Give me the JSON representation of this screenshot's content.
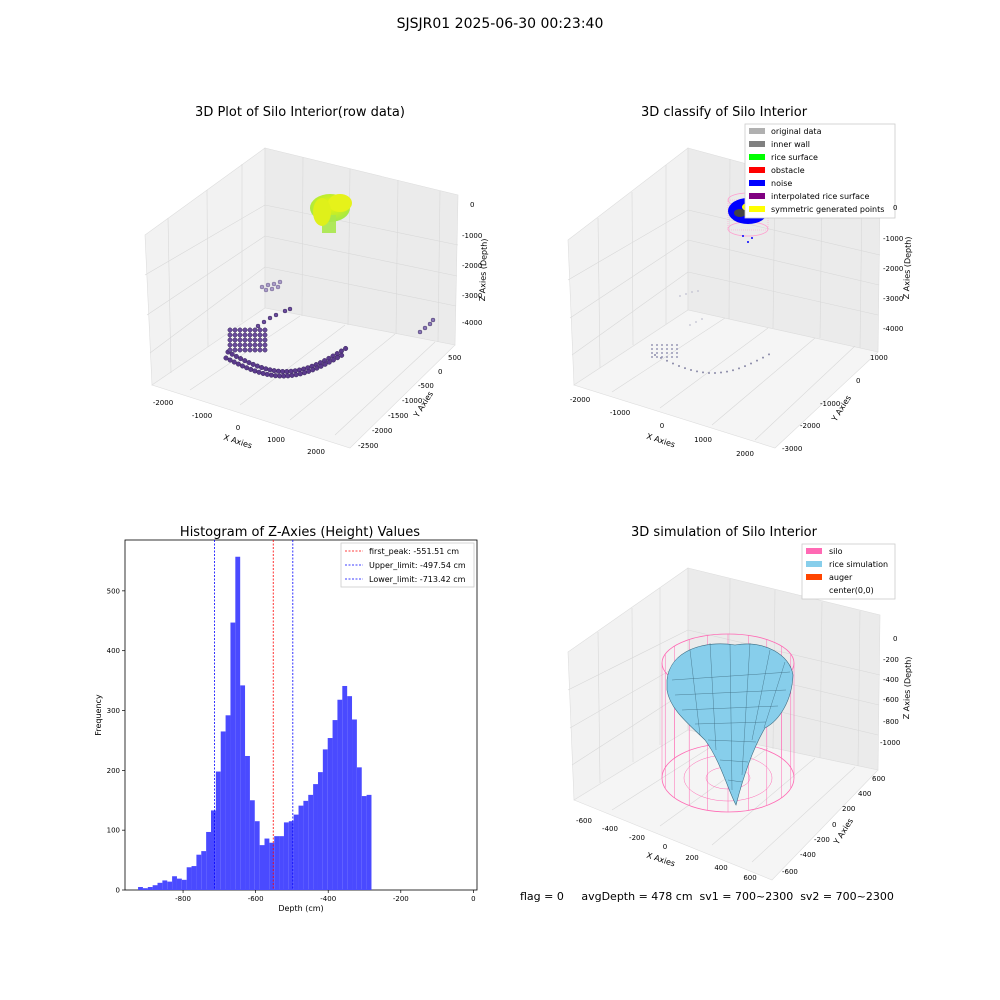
{
  "suptitle": "SJSJR01 2025-06-30 00:23:40",
  "panels": {
    "raw": {
      "title": "3D Plot of Silo Interior(row data)",
      "xlabel": "X Axies",
      "ylabel": "Y Axies",
      "zlabel": "Z Axies (Depth)",
      "xticks": [
        "-2000",
        "-1000",
        "0",
        "1000",
        "2000"
      ],
      "yticks": [
        "500",
        "0",
        "-500",
        "-1000",
        "-1500",
        "-2000",
        "-2500"
      ],
      "zticks": [
        "0",
        "-1000",
        "-2000",
        "-3000",
        "-4000"
      ]
    },
    "classify": {
      "title": "3D classify of Silo Interior",
      "xlabel": "X Axies",
      "ylabel": "Y Axies",
      "zlabel": "Z Axies (Depth)",
      "xticks": [
        "-2000",
        "-1000",
        "0",
        "1000",
        "2000"
      ],
      "yticks": [
        "1000",
        "0",
        "-1000",
        "-2000",
        "-3000"
      ],
      "zticks": [
        "0",
        "-1000",
        "-2000",
        "-3000",
        "-4000"
      ],
      "legend": [
        {
          "label": "original data",
          "color": "#b0b0b0"
        },
        {
          "label": "inner wall",
          "color": "#808080"
        },
        {
          "label": "rice surface",
          "color": "#00ff00"
        },
        {
          "label": "obstacle",
          "color": "#ff0000"
        },
        {
          "label": "noise",
          "color": "#0000ff"
        },
        {
          "label": "interpolated rice surface",
          "color": "#800080"
        },
        {
          "label": "symmetric generated points",
          "color": "#ffff00"
        }
      ]
    },
    "simulation": {
      "title": "3D simulation of Silo Interior",
      "xlabel": "X Axies",
      "ylabel": "Y Axies",
      "zlabel": "Z Axies (Depth)",
      "xticks": [
        "-600",
        "-400",
        "-200",
        "0",
        "200",
        "400",
        "600"
      ],
      "yticks": [
        "600",
        "400",
        "200",
        "0",
        "-200",
        "-400",
        "-600"
      ],
      "zticks": [
        "0",
        "-200",
        "-400",
        "-600",
        "-800",
        "-1000"
      ],
      "legend": [
        {
          "label": "silo",
          "color": "#ff69b4"
        },
        {
          "label": "rice simulation",
          "color": "#87ceeb"
        },
        {
          "label": "auger",
          "color": "#ff4500"
        },
        {
          "label": "center(0,0)",
          "color": "#ffffff"
        }
      ]
    }
  },
  "footer": "flag = 0     avgDepth = 478 cm  sv1 = 700~2300  sv2 = 700~2300",
  "chart_data": [
    {
      "type": "histogram",
      "title": "Histogram of Z-Axies (Height) Values",
      "xlabel": "Depth (cm)",
      "ylabel": "Frequency",
      "xlim": [
        -960,
        10
      ],
      "ylim": [
        0,
        585
      ],
      "xticks": [
        -800,
        -600,
        -400,
        -200,
        0
      ],
      "yticks": [
        0,
        100,
        200,
        300,
        400,
        500
      ],
      "bar_color": "#4a4aff",
      "bin_start": -924,
      "bin_width": 13.4,
      "values": [
        5,
        3,
        5,
        8,
        12,
        16,
        14,
        23,
        19,
        17,
        38,
        40,
        59,
        65,
        97,
        133,
        198,
        265,
        292,
        447,
        557,
        342,
        224,
        150,
        115,
        75,
        86,
        79,
        90,
        90,
        113,
        115,
        126,
        141,
        149,
        159,
        177,
        197,
        235,
        254,
        284,
        318,
        341,
        324,
        285,
        205,
        157,
        159
      ],
      "vlines": [
        {
          "label": "first_peak: -551.51 cm",
          "x": -551.51,
          "color": "#ff0000"
        },
        {
          "label": "Upper_limit: -497.54 cm",
          "x": -497.54,
          "color": "#0000ff"
        },
        {
          "label": "Lower_limit: -713.42 cm",
          "x": -713.42,
          "color": "#0000ff"
        }
      ]
    }
  ]
}
